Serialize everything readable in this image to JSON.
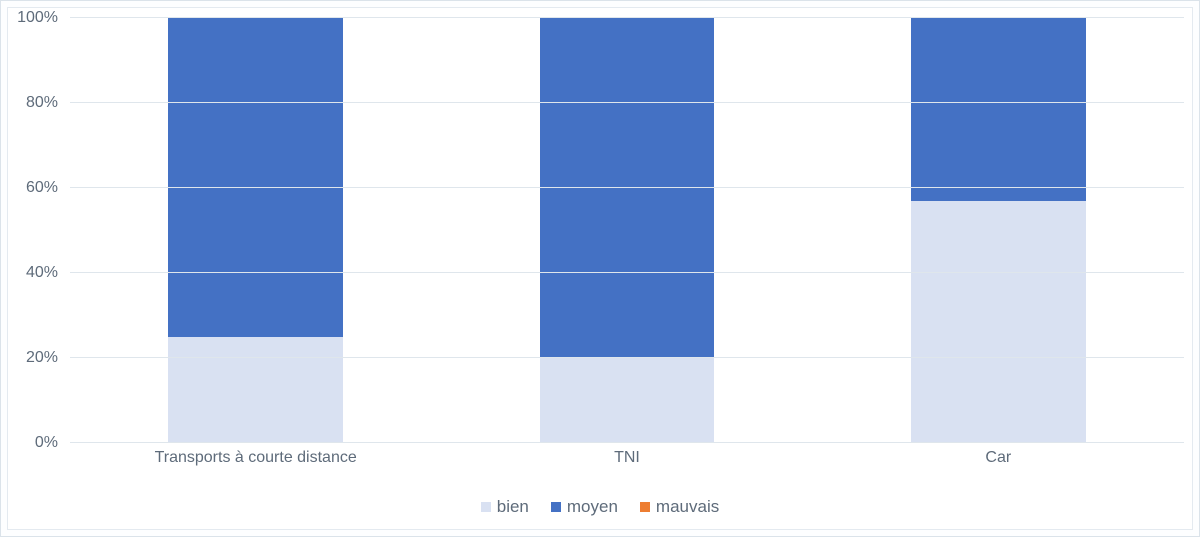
{
  "chart": {
    "type": "stacked-bar-100",
    "background_color": "#ffffff",
    "frame_background": "#fdfeff",
    "frame_border": "#dbe3ea",
    "card_border": "#e4eaf0",
    "grid_color": "#dfe6ec",
    "axis_text_color": "#5e6b7a",
    "axis_fontsize": 16,
    "legend_fontsize": 17,
    "ylim": [
      0,
      100
    ],
    "ytick_step": 20,
    "yticks": [
      {
        "value": 0,
        "label": "0%"
      },
      {
        "value": 20,
        "label": "20%"
      },
      {
        "value": 40,
        "label": "40%"
      },
      {
        "value": 60,
        "label": "60%"
      },
      {
        "value": 80,
        "label": "80%"
      },
      {
        "value": 100,
        "label": "100%"
      }
    ],
    "bar_width_ratio": 0.47,
    "categories": [
      {
        "label": "Transports à courte distance",
        "values": {
          "bien": 25,
          "moyen": 75,
          "mauvais": 0
        }
      },
      {
        "label": "TNI",
        "values": {
          "bien": 20,
          "moyen": 80,
          "mauvais": 0
        }
      },
      {
        "label": "Car",
        "values": {
          "bien": 57,
          "moyen": 43,
          "mauvais": 0
        }
      }
    ],
    "series": [
      {
        "key": "bien",
        "label": "bien",
        "color": "#d9e1f2"
      },
      {
        "key": "moyen",
        "label": "moyen",
        "color": "#4471c4"
      },
      {
        "key": "mauvais",
        "label": "mauvais",
        "color": "#ed7d31"
      }
    ]
  }
}
